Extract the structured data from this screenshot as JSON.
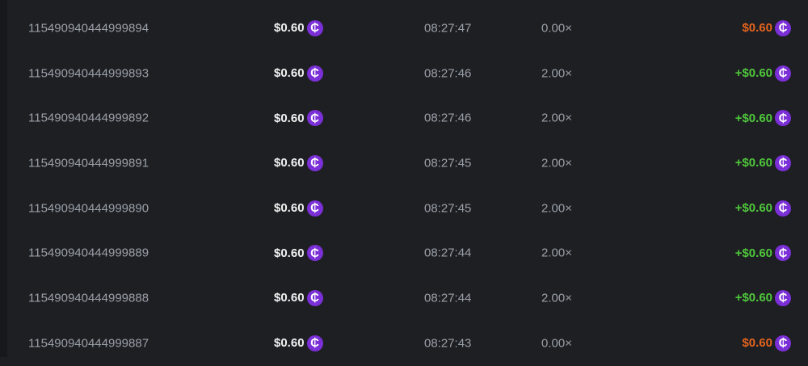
{
  "colors": {
    "background": "#1e1f23",
    "loss": "#e3641e",
    "win": "#4fc73b",
    "coin": "#7b2fd6"
  },
  "coin_icon": "cent-coin-icon",
  "coin_glyph": "₵",
  "rows": [
    {
      "id": "115490940444999894",
      "bet": "$0.60",
      "time": "08:27:47",
      "multiplier": "0.00×",
      "payout": "$0.60",
      "result": "loss"
    },
    {
      "id": "115490940444999893",
      "bet": "$0.60",
      "time": "08:27:46",
      "multiplier": "2.00×",
      "payout": "+$0.60",
      "result": "win"
    },
    {
      "id": "115490940444999892",
      "bet": "$0.60",
      "time": "08:27:46",
      "multiplier": "2.00×",
      "payout": "+$0.60",
      "result": "win"
    },
    {
      "id": "115490940444999891",
      "bet": "$0.60",
      "time": "08:27:45",
      "multiplier": "2.00×",
      "payout": "+$0.60",
      "result": "win"
    },
    {
      "id": "115490940444999890",
      "bet": "$0.60",
      "time": "08:27:45",
      "multiplier": "2.00×",
      "payout": "+$0.60",
      "result": "win"
    },
    {
      "id": "115490940444999889",
      "bet": "$0.60",
      "time": "08:27:44",
      "multiplier": "2.00×",
      "payout": "+$0.60",
      "result": "win"
    },
    {
      "id": "115490940444999888",
      "bet": "$0.60",
      "time": "08:27:44",
      "multiplier": "2.00×",
      "payout": "+$0.60",
      "result": "win"
    },
    {
      "id": "115490940444999887",
      "bet": "$0.60",
      "time": "08:27:43",
      "multiplier": "0.00×",
      "payout": "$0.60",
      "result": "loss"
    }
  ]
}
